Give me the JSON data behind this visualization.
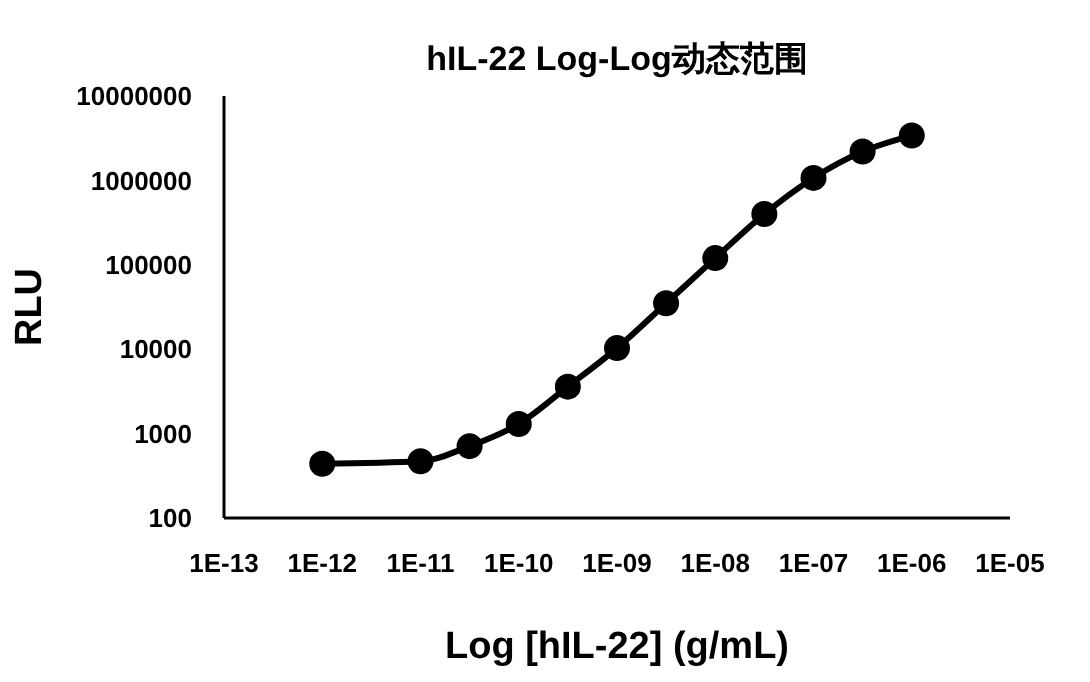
{
  "chart_data": {
    "type": "line",
    "title": "hIL-22 Log-Log动态范围",
    "xlabel": "Log [hIL-22] (g/mL)",
    "ylabel": "RLU",
    "log": "xy",
    "marker": "circle",
    "line_style": "solid",
    "grid": false,
    "legend": false,
    "x": [
      1e-12,
      1e-11,
      3.16e-11,
      1e-10,
      3.16e-10,
      1e-09,
      3.16e-09,
      1e-08,
      3.16e-08,
      1e-07,
      3.16e-07,
      1e-06
    ],
    "series": [
      {
        "color": "#000000",
        "values": [
          440,
          470,
          710,
          1300,
          3600,
          10300,
          35000,
          120000,
          400000,
          1070000,
          2200000,
          3400000
        ]
      }
    ],
    "xlim": [
      1e-13,
      1e-05
    ],
    "xticks": [
      {
        "value": 1e-13,
        "label": "1E-13"
      },
      {
        "value": 1e-12,
        "label": "1E-12"
      },
      {
        "value": 1e-11,
        "label": "1E-11"
      },
      {
        "value": 1e-10,
        "label": "1E-10"
      },
      {
        "value": 1e-09,
        "label": "1E-09"
      },
      {
        "value": 1e-08,
        "label": "1E-08"
      },
      {
        "value": 1e-07,
        "label": "1E-07"
      },
      {
        "value": 1e-06,
        "label": "1E-06"
      },
      {
        "value": 1e-05,
        "label": "1E-05"
      }
    ],
    "ylim": [
      100,
      10000000
    ],
    "yticks": [
      100,
      1000,
      10000,
      100000,
      1000000,
      10000000
    ]
  }
}
